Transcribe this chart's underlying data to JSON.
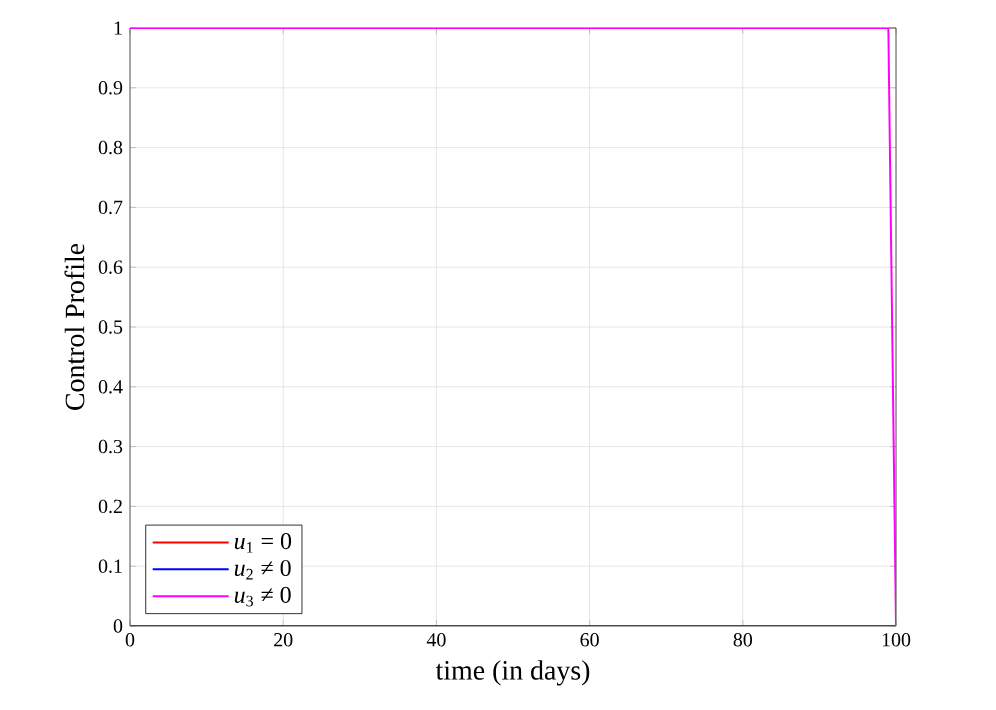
{
  "chart_data": {
    "type": "line",
    "xlabel": "time (in days)",
    "ylabel": "Control Profile",
    "xlim": [
      0,
      100
    ],
    "ylim": [
      0,
      1
    ],
    "xticks": [
      0,
      20,
      40,
      60,
      80,
      100
    ],
    "yticks": [
      0,
      0.1,
      0.2,
      0.3,
      0.4,
      0.5,
      0.6,
      0.7,
      0.8,
      0.9,
      1
    ],
    "grid": true,
    "legend": "bottom left",
    "line_style": "solid",
    "marker": "none",
    "series": [
      {
        "name": "*u*$_{1}$ = 0",
        "color": "#ff0000",
        "x": [
          0,
          100
        ],
        "values": [
          0,
          0
        ]
      },
      {
        "name": "*u*$_{2}$ ≠ 0",
        "color": "#0000ff"
      },
      {
        "name": "*u*$_{3}$ ≠ 0",
        "color": "#ff00ff",
        "x": [
          0,
          99,
          100
        ],
        "values": [
          1,
          1,
          0
        ]
      }
    ]
  }
}
